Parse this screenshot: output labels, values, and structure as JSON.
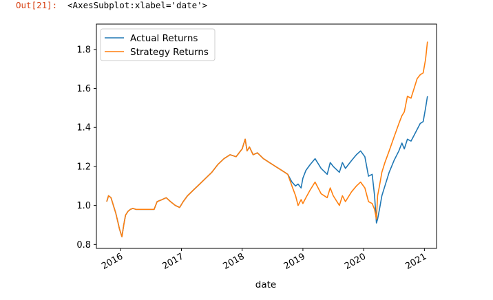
{
  "cell": {
    "prompt": "Out[21]:",
    "prompt_color": "#d84315",
    "output_repr": "<AxesSubplot:xlabel='date'>"
  },
  "chart_data": {
    "type": "line",
    "xlabel": "date",
    "ylabel": "",
    "x_unit": "year",
    "xlim": [
      2015.6,
      2021.2
    ],
    "ylim": [
      0.78,
      1.93
    ],
    "xticks": [
      2016,
      2017,
      2018,
      2019,
      2020,
      2021
    ],
    "xtick_labels": [
      "2016",
      "2017",
      "2018",
      "2019",
      "2020",
      "2021"
    ],
    "yticks": [
      0.8,
      1.0,
      1.2,
      1.4,
      1.6,
      1.8
    ],
    "ytick_labels": [
      "0.8",
      "1.0",
      "1.2",
      "1.4",
      "1.6",
      "1.8"
    ],
    "legend": {
      "position": "upper-left"
    },
    "series": [
      {
        "name": "Actual Returns",
        "color": "#1f77b4",
        "x": [
          2015.77,
          2015.8,
          2015.84,
          2015.88,
          2015.92,
          2015.95,
          2015.98,
          2016.02,
          2016.05,
          2016.08,
          2016.12,
          2016.16,
          2016.2,
          2016.25,
          2016.55,
          2016.6,
          2016.68,
          2016.75,
          2016.82,
          2016.9,
          2016.97,
          2017.03,
          2017.1,
          2017.2,
          2017.3,
          2017.4,
          2017.5,
          2017.6,
          2017.7,
          2017.8,
          2017.9,
          2018.0,
          2018.05,
          2018.08,
          2018.12,
          2018.18,
          2018.25,
          2018.35,
          2018.45,
          2018.55,
          2018.65,
          2018.75,
          2018.82,
          2018.88,
          2018.92,
          2018.97,
          2019.0,
          2019.05,
          2019.12,
          2019.2,
          2019.3,
          2019.4,
          2019.45,
          2019.5,
          2019.6,
          2019.65,
          2019.7,
          2019.8,
          2019.88,
          2019.95,
          2020.02,
          2020.08,
          2020.14,
          2020.18,
          2020.21,
          2020.23,
          2020.26,
          2020.3,
          2020.35,
          2020.42,
          2020.5,
          2020.58,
          2020.63,
          2020.67,
          2020.72,
          2020.78,
          2020.83,
          2020.88,
          2020.93,
          2020.98,
          2021.02,
          2021.05
        ],
        "values": [
          1.02,
          1.05,
          1.04,
          1.0,
          0.96,
          0.92,
          0.88,
          0.84,
          0.9,
          0.95,
          0.97,
          0.98,
          0.985,
          0.98,
          0.98,
          1.02,
          1.03,
          1.04,
          1.02,
          1.0,
          0.99,
          1.02,
          1.05,
          1.08,
          1.11,
          1.14,
          1.17,
          1.21,
          1.24,
          1.26,
          1.25,
          1.29,
          1.34,
          1.28,
          1.3,
          1.26,
          1.27,
          1.24,
          1.22,
          1.2,
          1.18,
          1.16,
          1.12,
          1.1,
          1.11,
          1.09,
          1.14,
          1.18,
          1.21,
          1.24,
          1.19,
          1.16,
          1.22,
          1.2,
          1.17,
          1.22,
          1.19,
          1.23,
          1.26,
          1.28,
          1.25,
          1.15,
          1.16,
          1.05,
          0.91,
          0.93,
          0.98,
          1.05,
          1.1,
          1.17,
          1.23,
          1.28,
          1.32,
          1.29,
          1.34,
          1.33,
          1.36,
          1.39,
          1.42,
          1.43,
          1.5,
          1.56
        ]
      },
      {
        "name": "Strategy Returns",
        "color": "#ff7f0e",
        "x": [
          2015.77,
          2015.8,
          2015.84,
          2015.88,
          2015.92,
          2015.95,
          2015.98,
          2016.02,
          2016.05,
          2016.08,
          2016.12,
          2016.16,
          2016.2,
          2016.25,
          2016.55,
          2016.6,
          2016.68,
          2016.75,
          2016.82,
          2016.9,
          2016.97,
          2017.03,
          2017.1,
          2017.2,
          2017.3,
          2017.4,
          2017.5,
          2017.6,
          2017.7,
          2017.8,
          2017.9,
          2018.0,
          2018.05,
          2018.08,
          2018.12,
          2018.18,
          2018.25,
          2018.35,
          2018.45,
          2018.55,
          2018.65,
          2018.75,
          2018.82,
          2018.88,
          2018.92,
          2018.97,
          2019.0,
          2019.05,
          2019.12,
          2019.2,
          2019.3,
          2019.4,
          2019.45,
          2019.5,
          2019.6,
          2019.65,
          2019.7,
          2019.8,
          2019.88,
          2019.95,
          2020.02,
          2020.08,
          2020.14,
          2020.18,
          2020.21,
          2020.23,
          2020.26,
          2020.3,
          2020.35,
          2020.42,
          2020.5,
          2020.58,
          2020.63,
          2020.67,
          2020.72,
          2020.78,
          2020.83,
          2020.88,
          2020.93,
          2020.98,
          2021.02,
          2021.05
        ],
        "values": [
          1.02,
          1.05,
          1.04,
          1.0,
          0.96,
          0.92,
          0.88,
          0.84,
          0.9,
          0.95,
          0.97,
          0.98,
          0.985,
          0.98,
          0.98,
          1.02,
          1.03,
          1.04,
          1.02,
          1.0,
          0.99,
          1.02,
          1.05,
          1.08,
          1.11,
          1.14,
          1.17,
          1.21,
          1.24,
          1.26,
          1.25,
          1.29,
          1.34,
          1.28,
          1.3,
          1.26,
          1.27,
          1.24,
          1.22,
          1.2,
          1.18,
          1.16,
          1.1,
          1.05,
          1.0,
          1.03,
          1.01,
          1.04,
          1.08,
          1.12,
          1.06,
          1.04,
          1.09,
          1.05,
          1.0,
          1.05,
          1.02,
          1.07,
          1.1,
          1.12,
          1.09,
          1.02,
          1.01,
          0.98,
          0.93,
          1.05,
          1.1,
          1.17,
          1.22,
          1.28,
          1.35,
          1.42,
          1.46,
          1.48,
          1.56,
          1.55,
          1.6,
          1.65,
          1.67,
          1.68,
          1.75,
          1.84
        ]
      }
    ]
  }
}
